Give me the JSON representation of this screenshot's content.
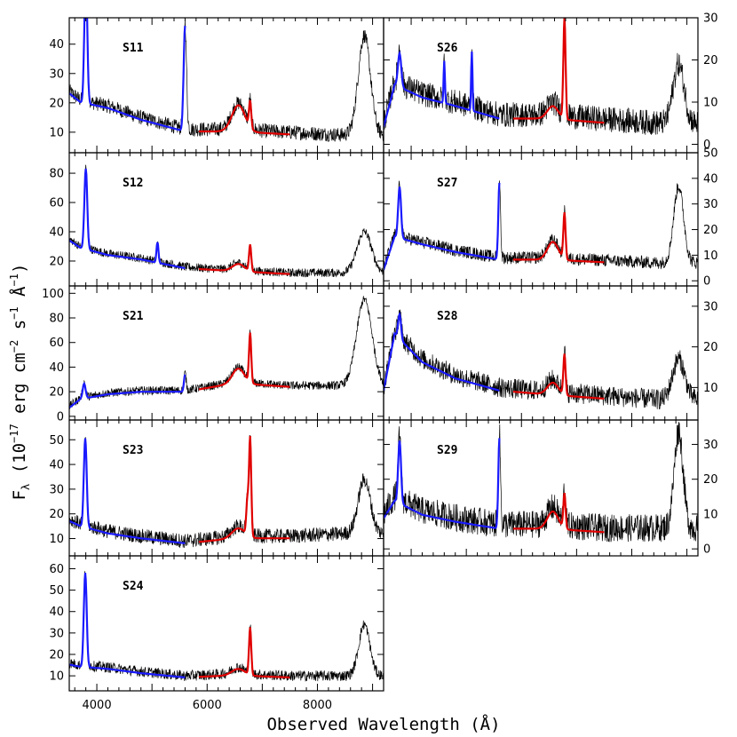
{
  "chart_data": {
    "type": "line",
    "xlabel": "Observed Wavelength (Å)",
    "ylabel": "F_λ (10^-17 erg cm^-2 s^-1 Å^-1)",
    "ylabel_parts": {
      "F": "F",
      "lambda": "λ",
      "open": " (10",
      "exp17": "−17",
      "erg": " erg cm",
      "exp2": "−2",
      "s": " s",
      "exp1a": "−1",
      "A": " Å",
      "exp1b": "−1",
      "close": ")"
    },
    "xlim": [
      3500,
      9200
    ],
    "xticks": [
      4000,
      6000,
      8000
    ],
    "xtick_labels": [
      "4000",
      "6000",
      "8000"
    ],
    "series_colors": {
      "observed": "#000000",
      "blue_model": "#1a1aff",
      "red_model": "#e00000"
    },
    "grid": false,
    "panels": [
      {
        "label": "S11",
        "ylim": [
          3,
          49
        ],
        "yticks": [
          10,
          20,
          30,
          40
        ],
        "ytick_side": "left",
        "continuum": [
          [
            3500,
            24
          ],
          [
            3700,
            21
          ],
          [
            4200,
            19
          ],
          [
            4800,
            15
          ],
          [
            5600,
            11
          ],
          [
            6500,
            11
          ],
          [
            7500,
            10
          ],
          [
            8500,
            9
          ],
          [
            9200,
            9
          ]
        ],
        "lines": [
          [
            3800,
            26,
            45
          ],
          [
            5600,
            26,
            36
          ],
          [
            6570,
            120,
            9
          ],
          [
            6780,
            20,
            9
          ],
          [
            8850,
            110,
            34
          ]
        ],
        "blue_range": [
          3500,
          5600
        ],
        "red_range": [
          5850,
          7500
        ],
        "noise": 2.5
      },
      {
        "label": "S12",
        "ylim": [
          3,
          94
        ],
        "yticks": [
          20,
          40,
          60,
          80
        ],
        "ytick_side": "left",
        "continuum": [
          [
            3500,
            35
          ],
          [
            3700,
            30
          ],
          [
            4200,
            25
          ],
          [
            4800,
            22
          ],
          [
            5600,
            16
          ],
          [
            6500,
            14
          ],
          [
            7500,
            12
          ],
          [
            8500,
            12
          ],
          [
            9200,
            12
          ]
        ],
        "lines": [
          [
            3800,
            26,
            55
          ],
          [
            5100,
            18,
            14
          ],
          [
            6570,
            110,
            5
          ],
          [
            6780,
            20,
            18
          ],
          [
            8850,
            130,
            28
          ]
        ],
        "blue_range": [
          3500,
          5600
        ],
        "red_range": [
          5850,
          7500
        ],
        "noise": 3
      },
      {
        "label": "S21",
        "ylim": [
          -3,
          106
        ],
        "yticks": [
          0,
          20,
          40,
          60,
          80,
          100
        ],
        "ytick_side": "left",
        "continuum": [
          [
            3500,
            8
          ],
          [
            3700,
            15
          ],
          [
            4200,
            19
          ],
          [
            4800,
            21
          ],
          [
            5600,
            21
          ],
          [
            6500,
            28
          ],
          [
            7500,
            25
          ],
          [
            8500,
            25
          ],
          [
            9200,
            25
          ]
        ],
        "lines": [
          [
            3770,
            26,
            12
          ],
          [
            5600,
            20,
            14
          ],
          [
            6570,
            110,
            12
          ],
          [
            6780,
            20,
            40
          ],
          [
            8850,
            140,
            70
          ]
        ],
        "blue_range": [
          3500,
          5600
        ],
        "red_range": [
          5850,
          7500
        ],
        "noise": 3.5
      },
      {
        "label": "S23",
        "ylim": [
          3,
          58
        ],
        "yticks": [
          10,
          20,
          30,
          40,
          50
        ],
        "ytick_side": "left",
        "continuum": [
          [
            3500,
            18
          ],
          [
            3700,
            16
          ],
          [
            4200,
            13
          ],
          [
            4800,
            11
          ],
          [
            5600,
            9
          ],
          [
            6500,
            11
          ],
          [
            7500,
            11
          ],
          [
            8500,
            12
          ],
          [
            9200,
            12
          ]
        ],
        "lines": [
          [
            3790,
            26,
            36
          ],
          [
            6570,
            120,
            4
          ],
          [
            6730,
            20,
            14
          ],
          [
            6780,
            20,
            40
          ],
          [
            8850,
            110,
            22
          ]
        ],
        "blue_range": [
          3500,
          5600
        ],
        "red_range": [
          5850,
          7500
        ],
        "noise": 3
      },
      {
        "label": "S24",
        "ylim": [
          3,
          66
        ],
        "yticks": [
          10,
          20,
          30,
          40,
          50,
          60
        ],
        "ytick_side": "left",
        "continuum": [
          [
            3500,
            16
          ],
          [
            3700,
            15
          ],
          [
            4200,
            14
          ],
          [
            4800,
            12
          ],
          [
            5600,
            10
          ],
          [
            6500,
            11
          ],
          [
            7500,
            10
          ],
          [
            8500,
            10
          ],
          [
            9200,
            10
          ]
        ],
        "lines": [
          [
            3790,
            26,
            44
          ],
          [
            6570,
            120,
            3
          ],
          [
            6780,
            20,
            22
          ],
          [
            8850,
            100,
            24
          ]
        ],
        "blue_range": [
          3500,
          5600
        ],
        "red_range": [
          5850,
          7500
        ],
        "noise": 2.5
      },
      {
        "label": "S26",
        "ylim": [
          -2,
          30
        ],
        "yticks": [
          0,
          10,
          20,
          30
        ],
        "ytick_side": "right",
        "continuum": [
          [
            3500,
            5
          ],
          [
            3700,
            15
          ],
          [
            4200,
            12
          ],
          [
            4800,
            10
          ],
          [
            5600,
            7
          ],
          [
            6500,
            7
          ],
          [
            7500,
            6
          ],
          [
            8500,
            5
          ],
          [
            9200,
            5
          ]
        ],
        "lines": [
          [
            3790,
            30,
            8
          ],
          [
            4600,
            12,
            10
          ],
          [
            5100,
            12,
            14
          ],
          [
            6570,
            100,
            3
          ],
          [
            6780,
            20,
            24
          ],
          [
            8850,
            100,
            14
          ]
        ],
        "blue_range": [
          3500,
          5600
        ],
        "red_range": [
          5850,
          7500
        ],
        "noise": 3
      },
      {
        "label": "S27",
        "ylim": [
          -2,
          50
        ],
        "yticks": [
          0,
          10,
          20,
          30,
          40,
          50
        ],
        "ytick_side": "right",
        "continuum": [
          [
            3500,
            5
          ],
          [
            3700,
            18
          ],
          [
            4200,
            15
          ],
          [
            4800,
            12
          ],
          [
            5600,
            9
          ],
          [
            6500,
            9
          ],
          [
            7500,
            8
          ],
          [
            8500,
            7
          ],
          [
            9200,
            7
          ]
        ],
        "lines": [
          [
            3790,
            26,
            20
          ],
          [
            5600,
            20,
            30
          ],
          [
            6570,
            100,
            7
          ],
          [
            6780,
            20,
            18
          ],
          [
            8850,
            90,
            30
          ]
        ],
        "blue_range": [
          3500,
          5600
        ],
        "red_range": [
          5850,
          7500
        ],
        "noise": 2.5
      },
      {
        "label": "S28",
        "ylim": [
          2,
          35
        ],
        "yticks": [
          10,
          20,
          30
        ],
        "ytick_side": "right",
        "continuum": [
          [
            3500,
            10
          ],
          [
            3700,
            24
          ],
          [
            4200,
            17
          ],
          [
            4800,
            13
          ],
          [
            5600,
            10
          ],
          [
            6500,
            9
          ],
          [
            7500,
            8
          ],
          [
            8500,
            7
          ],
          [
            9200,
            7
          ]
        ],
        "lines": [
          [
            3790,
            26,
            6
          ],
          [
            6570,
            100,
            3
          ],
          [
            6780,
            20,
            10
          ],
          [
            8850,
            110,
            10
          ]
        ],
        "blue_range": [
          3500,
          5600
        ],
        "red_range": [
          5850,
          7500
        ],
        "noise": 2.5
      },
      {
        "label": "S29",
        "ylim": [
          -2,
          37
        ],
        "yticks": [
          0,
          10,
          20,
          30
        ],
        "ytick_side": "right",
        "continuum": [
          [
            3500,
            10
          ],
          [
            3700,
            15
          ],
          [
            4200,
            11
          ],
          [
            4800,
            9
          ],
          [
            5600,
            7
          ],
          [
            6500,
            7
          ],
          [
            7500,
            6
          ],
          [
            8500,
            6
          ],
          [
            9200,
            6
          ]
        ],
        "lines": [
          [
            3790,
            26,
            18
          ],
          [
            5600,
            20,
            26
          ],
          [
            6570,
            100,
            5
          ],
          [
            6780,
            20,
            10
          ],
          [
            8850,
            80,
            28
          ]
        ],
        "blue_range": [
          3500,
          5600
        ],
        "red_range": [
          5850,
          7500
        ],
        "noise": 4
      }
    ]
  }
}
